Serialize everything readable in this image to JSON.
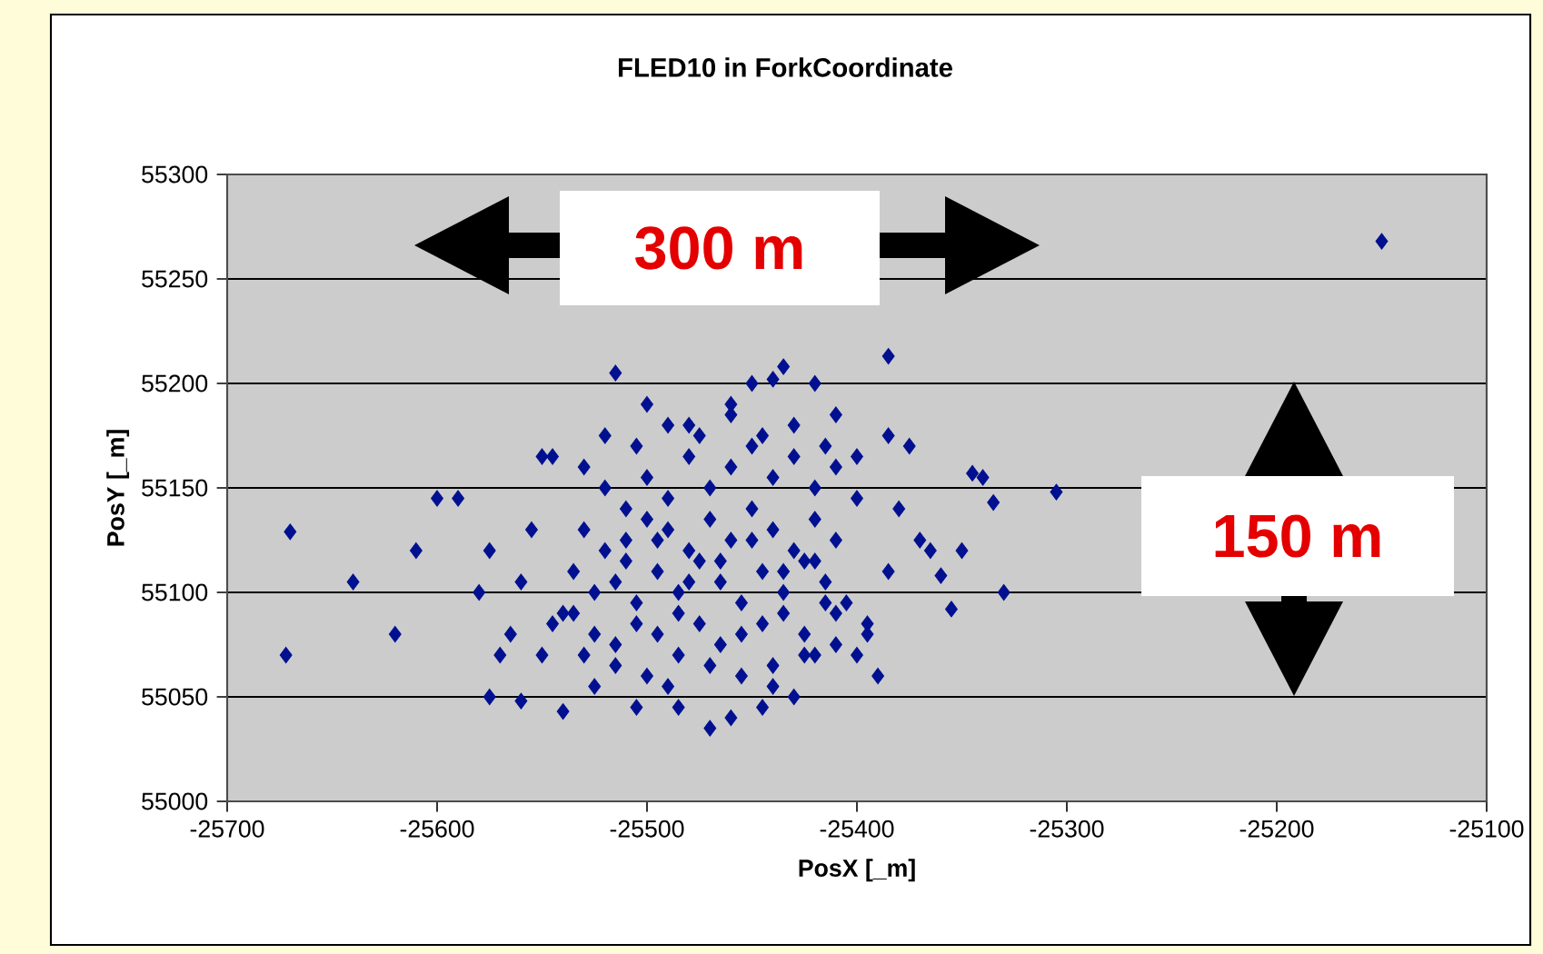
{
  "chart_data": {
    "type": "scatter",
    "title": "FLED10  in ForkCoordinate",
    "xlabel": "PosX  [_m]",
    "ylabel": "PosY [_m]",
    "annotations": [
      "300   m",
      "150   m"
    ],
    "xlim": [
      -25700,
      -25100
    ],
    "ylim": [
      55000,
      55300
    ],
    "xticks": [
      -25700,
      -25600,
      -25500,
      -25400,
      -25300,
      -25200,
      -25100
    ],
    "yticks": [
      55000,
      55050,
      55100,
      55150,
      55200,
      55250,
      55300
    ],
    "grid": "y",
    "marker": "diamond",
    "series": [
      {
        "color": "#001090",
        "x": [
          -25150,
          -25670,
          -25672,
          -25640,
          -25620,
          -25610,
          -25600,
          -25590,
          -25580,
          -25575,
          -25570,
          -25565,
          -25555,
          -25550,
          -25545,
          -25540,
          -25550,
          -25560,
          -25305,
          -25330,
          -25335,
          -25340,
          -25345,
          -25350,
          -25355,
          -25360,
          -25365,
          -25370,
          -25380,
          -25375,
          -25385,
          -25385,
          -25395,
          -25400,
          -25390,
          -25410,
          -25420,
          -25385,
          -25435,
          -25440,
          -25420,
          -25515,
          -25450,
          -25410,
          -25460,
          -25480,
          -25500,
          -25470,
          -25460,
          -25445,
          -25430,
          -25485,
          -25505,
          -25540,
          -25525,
          -25560,
          -25575,
          -25490,
          -25440,
          -25530,
          -25520,
          -25510,
          -25500,
          -25490,
          -25480,
          -25470,
          -25460,
          -25450,
          -25440,
          -25430,
          -25420,
          -25410,
          -25400,
          -25530,
          -25520,
          -25510,
          -25500,
          -25490,
          -25480,
          -25470,
          -25460,
          -25450,
          -25440,
          -25430,
          -25420,
          -25410,
          -25535,
          -25525,
          -25515,
          -25505,
          -25495,
          -25485,
          -25475,
          -25465,
          -25455,
          -25445,
          -25435,
          -25425,
          -25415,
          -25405,
          -25545,
          -25535,
          -25525,
          -25515,
          -25505,
          -25495,
          -25485,
          -25475,
          -25465,
          -25455,
          -25445,
          -25435,
          -25425,
          -25415,
          -25530,
          -25515,
          -25500,
          -25485,
          -25470,
          -25455,
          -25440,
          -25425,
          -25410,
          -25395,
          -25520,
          -25505,
          -25490,
          -25475,
          -25460,
          -25445,
          -25430,
          -25415,
          -25400,
          -25510,
          -25495,
          -25480,
          -25465,
          -25450,
          -25435,
          -25420
        ],
        "values": [
          55268,
          55129,
          55070,
          55105,
          55080,
          55120,
          55145,
          55145,
          55100,
          55120,
          55070,
          55080,
          55130,
          55165,
          55165,
          55090,
          55070,
          55105,
          55148,
          55100,
          55143,
          55155,
          55157,
          55120,
          55092,
          55108,
          55120,
          55125,
          55140,
          55170,
          55175,
          55110,
          55080,
          55070,
          55060,
          55090,
          55070,
          55213,
          55208,
          55202,
          55200,
          55205,
          55200,
          55185,
          55190,
          55180,
          55190,
          55035,
          55040,
          55045,
          55050,
          55045,
          55045,
          55043,
          55055,
          55048,
          55050,
          55055,
          55055,
          55160,
          55150,
          55140,
          55155,
          55145,
          55165,
          55150,
          55160,
          55170,
          55155,
          55165,
          55150,
          55160,
          55145,
          55130,
          55120,
          55125,
          55135,
          55130,
          55120,
          55135,
          55125,
          55140,
          55130,
          55120,
          55135,
          55125,
          55110,
          55100,
          55105,
          55095,
          55110,
          55100,
          55115,
          55105,
          55095,
          55110,
          55100,
          55115,
          55105,
          55095,
          55085,
          55090,
          55080,
          55075,
          55085,
          55080,
          55090,
          55085,
          55075,
          55080,
          55085,
          55090,
          55080,
          55095,
          55070,
          55065,
          55060,
          55070,
          55065,
          55060,
          55065,
          55070,
          55075,
          55085,
          55175,
          55170,
          55180,
          55175,
          55185,
          55175,
          55180,
          55170,
          55165,
          55115,
          55125,
          55105,
          55115,
          55125,
          55110,
          55115
        ]
      }
    ]
  }
}
